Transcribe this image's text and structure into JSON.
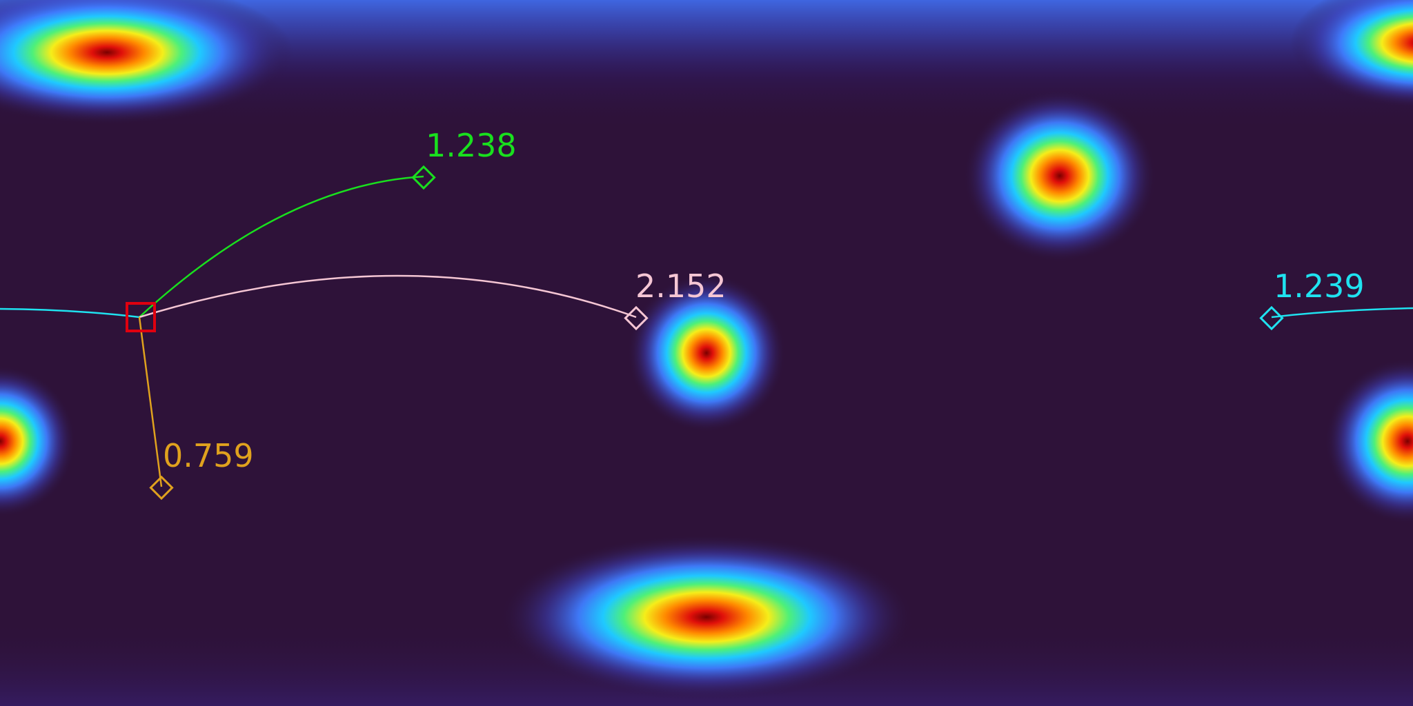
{
  "colors": {
    "background": "#2e1239",
    "reference_marker": "#e0000f",
    "green": "#19e01e",
    "pink": "#f5c6d4",
    "orange": "#e0a21e",
    "cyan": "#1fe3f0"
  },
  "reference_marker": {
    "icon": "square-icon",
    "color": "#e0000f"
  },
  "targets": [
    {
      "id": "green",
      "icon": "diamond-icon",
      "label": "1.238",
      "color": "#19e01e"
    },
    {
      "id": "pink",
      "icon": "diamond-icon",
      "label": "2.152",
      "color": "#f5c6d4"
    },
    {
      "id": "orange",
      "icon": "diamond-icon",
      "label": "0.759",
      "color": "#e0a21e"
    },
    {
      "id": "cyan",
      "icon": "diamond-icon",
      "label": "1.239",
      "color": "#1fe3f0"
    }
  ]
}
